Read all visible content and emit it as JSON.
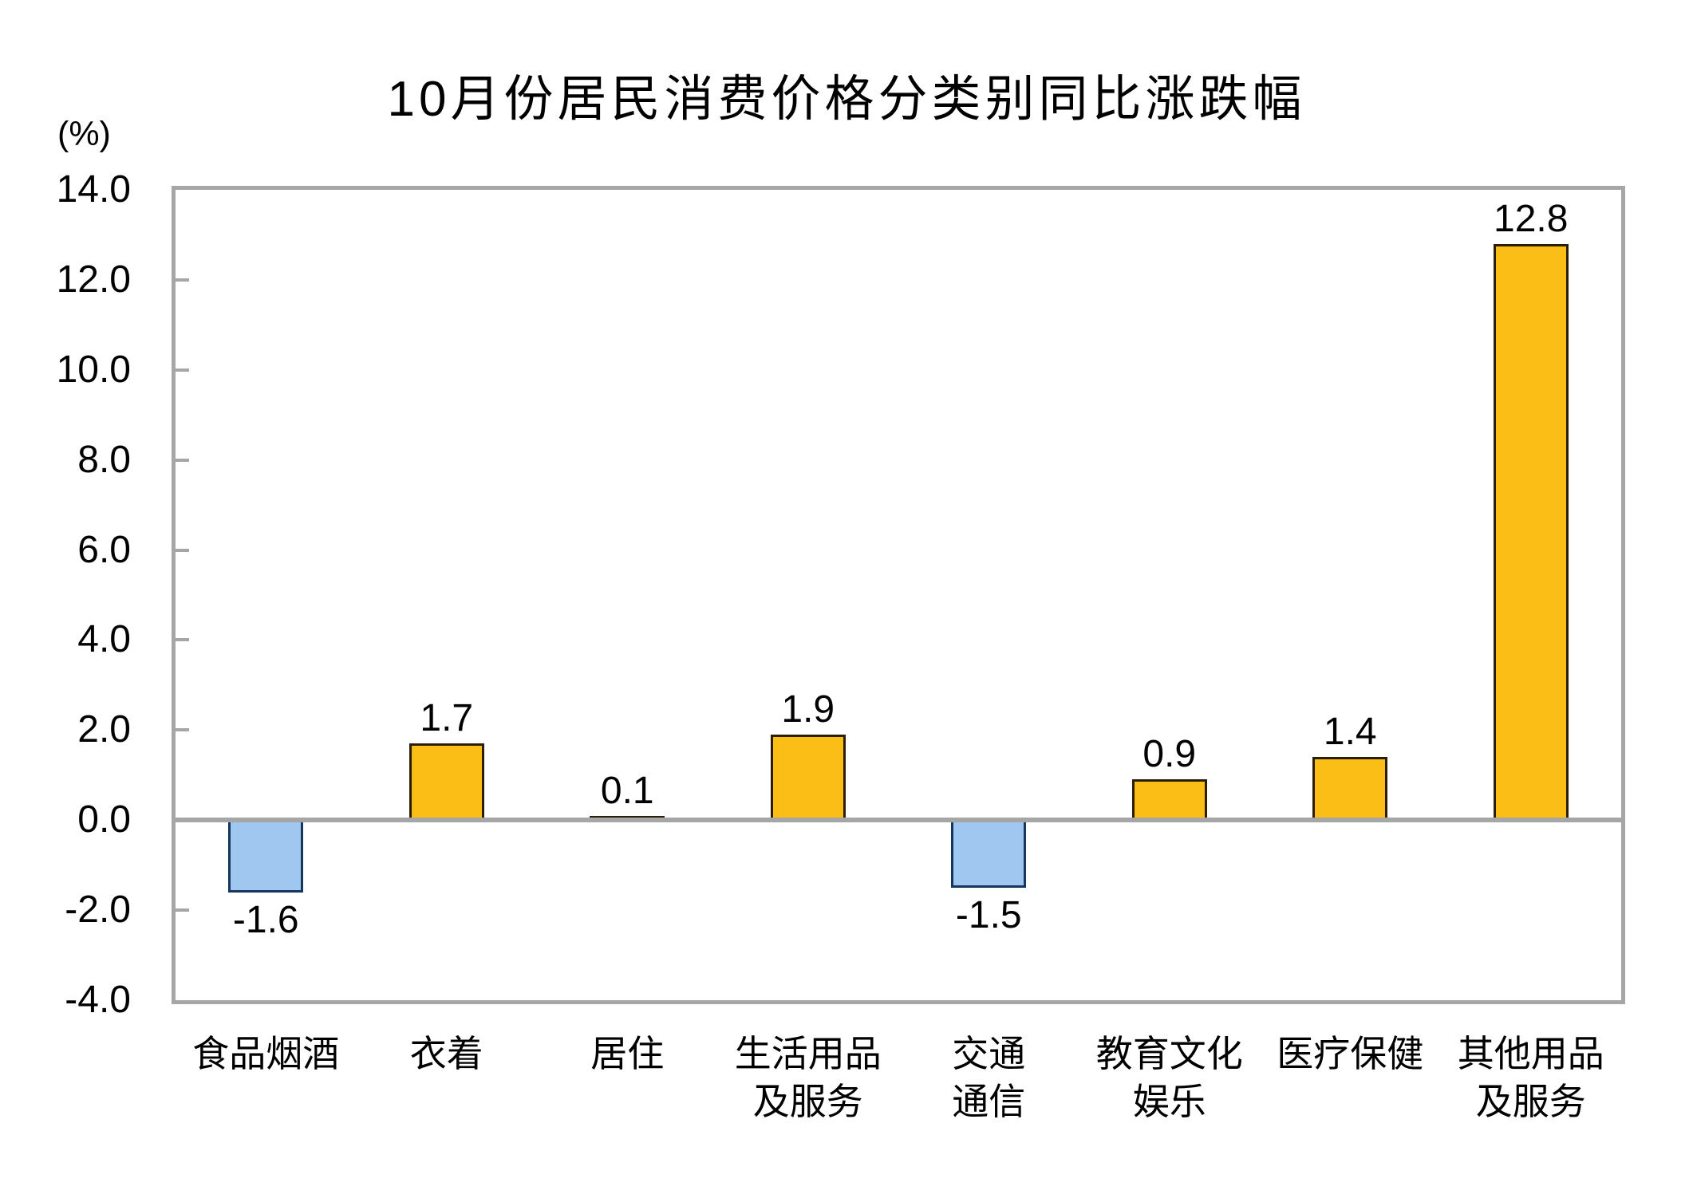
{
  "chart_data": {
    "type": "bar",
    "title": "10月份居民消费价格分类别同比涨跌幅",
    "ylabel": "(%)",
    "xlabel": "",
    "categories": [
      "食品烟酒",
      "衣着",
      "居住",
      "生活用品\n及服务",
      "交通\n通信",
      "教育文化\n娱乐",
      "医疗保健",
      "其他用品\n及服务"
    ],
    "values": [
      -1.6,
      1.7,
      0.1,
      1.9,
      -1.5,
      0.9,
      1.4,
      12.8
    ],
    "value_labels": [
      "-1.6",
      "1.7",
      "0.1",
      "1.9",
      "-1.5",
      "0.9",
      "1.4",
      "12.8"
    ],
    "ytick_labels": [
      "14.0",
      "12.0",
      "10.0",
      "8.0",
      "6.0",
      "4.0",
      "2.0",
      "0.0",
      "-2.0",
      "-4.0"
    ],
    "ylim": [
      -4.0,
      14.0
    ],
    "ytick_step": 2.0,
    "grid": false,
    "legend": false,
    "colors": {
      "positive_fill": "#FBBE17",
      "positive_border": "#2B1D07",
      "negative_fill": "#A0C7F0",
      "negative_border": "#17365D",
      "axis": "#A6A6A6",
      "text": "#000000"
    }
  }
}
